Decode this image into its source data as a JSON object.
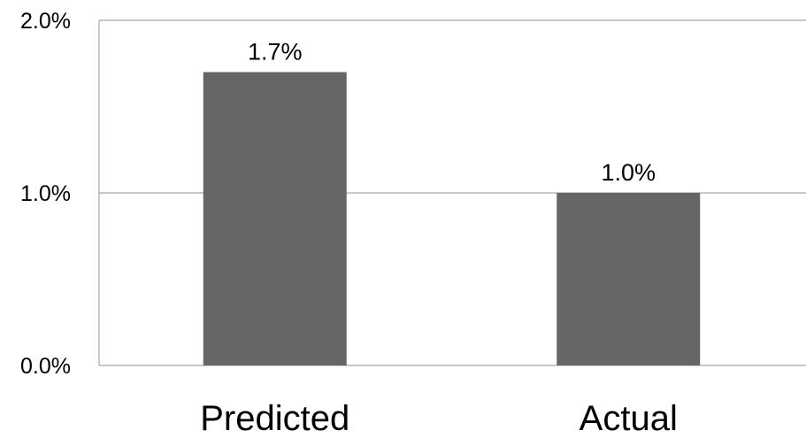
{
  "chart_data": {
    "type": "bar",
    "title": "",
    "xlabel": "",
    "ylabel": "",
    "categories": [
      "Predicted",
      "Actual"
    ],
    "values": [
      1.7,
      1.0
    ],
    "data_labels": [
      "1.7%",
      "1.0%"
    ],
    "ylim": [
      0,
      2.0
    ],
    "yticks": [
      {
        "value": 0.0,
        "label": "0.0%"
      },
      {
        "value": 1.0,
        "label": "1.0%"
      },
      {
        "value": 2.0,
        "label": "2.0%"
      }
    ],
    "grid": true,
    "legend": "none",
    "colors": {
      "bar": "#666666",
      "gridline": "#a6a6a6",
      "axis": "#a6a6a6"
    }
  }
}
